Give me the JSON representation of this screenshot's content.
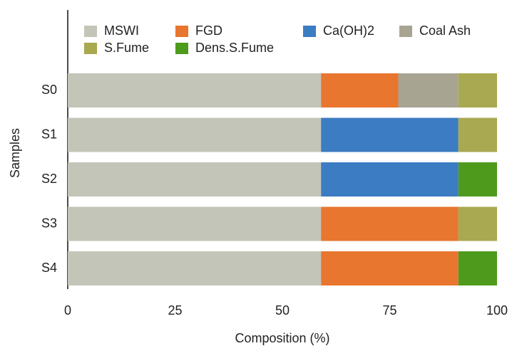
{
  "chart_data": {
    "type": "stacked-barh",
    "xlabel": "Composition (%)",
    "ylabel": "Samples",
    "categories": [
      "S0",
      "S1",
      "S2",
      "S3",
      "S4"
    ],
    "series": [
      {
        "name": "MSWI",
        "color": "#c3c5b8",
        "values": [
          59,
          59,
          59,
          59,
          59
        ]
      },
      {
        "name": "FGD",
        "color": "#e8762f",
        "values": [
          18,
          0,
          0,
          32,
          32
        ]
      },
      {
        "name": "Ca(OH)2",
        "color": "#3b7cc2",
        "values": [
          0,
          32,
          32,
          0,
          0
        ]
      },
      {
        "name": "Coal Ash",
        "color": "#a8a492",
        "values": [
          14,
          0,
          0,
          0,
          0
        ]
      },
      {
        "name": "S.Fume",
        "color": "#a8a950",
        "values": [
          9,
          9,
          0,
          9,
          0
        ]
      },
      {
        "name": "Dens.S.Fume",
        "color": "#4e9a1d",
        "values": [
          0,
          0,
          9,
          0,
          9
        ]
      }
    ],
    "xlim": [
      0,
      100
    ],
    "xticks": [
      0,
      25,
      50,
      75,
      100
    ]
  }
}
